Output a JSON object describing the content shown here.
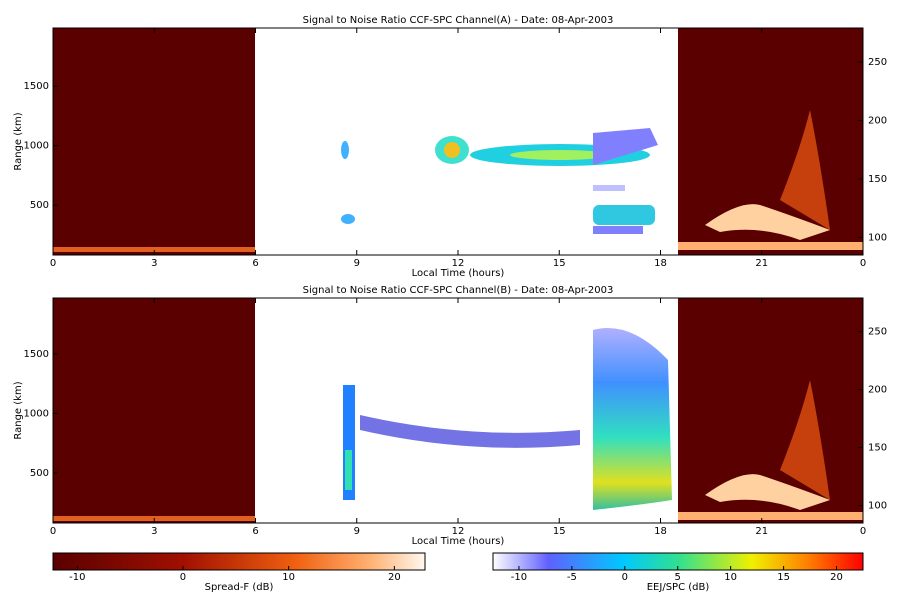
{
  "chart_data": [
    {
      "type": "heatmap",
      "title": "Signal to Noise Ratio CCF-SPC Channel(A) - Date: 08-Apr-2003",
      "x_label": "Local Time (hours)",
      "y_label": "Range (km)",
      "xlim": [
        0,
        24
      ],
      "xticks": [
        0,
        3,
        6,
        9,
        12,
        15,
        18,
        21,
        {
          "value": 24,
          "label": "0"
        }
      ],
      "ylim": [
        80,
        1990
      ],
      "yticks": [
        500,
        1000,
        1500
      ],
      "y2lim": [
        85,
        279
      ],
      "y2ticks": [
        100,
        150,
        200,
        250
      ]
    },
    {
      "type": "heatmap",
      "title": "Signal to Noise Ratio CCF-SPC Channel(B) - Date: 08-Apr-2003",
      "x_label": "Local Time (hours)",
      "y_label": "Range (km)",
      "xlim": [
        0,
        24
      ],
      "xticks": [
        0,
        3,
        6,
        9,
        12,
        15,
        18,
        21,
        {
          "value": 24,
          "label": "0"
        }
      ],
      "ylim": [
        80,
        1970
      ],
      "yticks": [
        500,
        1000,
        1500
      ],
      "y2lim": [
        85,
        279
      ],
      "y2ticks": [
        100,
        150,
        200,
        250
      ]
    }
  ],
  "colorbars": [
    {
      "label": "Spread-F (dB)",
      "lim": [
        -12.3,
        22.9
      ],
      "ticks": [
        -10,
        0,
        10,
        20
      ]
    },
    {
      "label": "EEJ/SPC (dB)",
      "lim": [
        -12.45,
        22.5
      ],
      "ticks": [
        -10,
        -5,
        0,
        5,
        10,
        15,
        20
      ]
    }
  ]
}
